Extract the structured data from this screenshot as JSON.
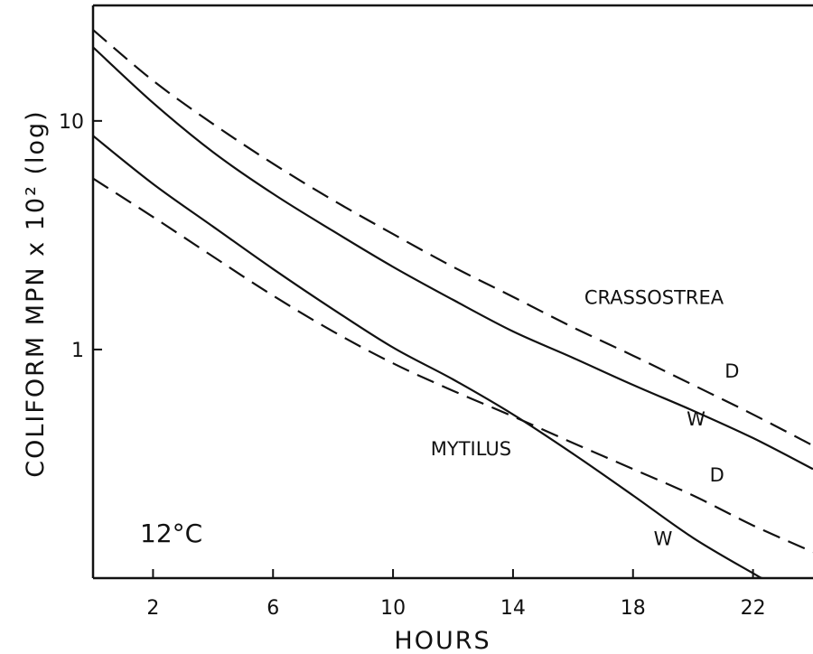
{
  "chart_data": {
    "type": "line",
    "xlabel": "HOURS",
    "ylabel": "COLIFORM MPN x 10² (log)",
    "y_scale": "log",
    "xlim": [
      0,
      24
    ],
    "ylim": [
      0.1,
      32
    ],
    "x_ticks": [
      2,
      6,
      10,
      14,
      18,
      22
    ],
    "x_tick_labels": [
      "2",
      "6",
      "10",
      "14",
      "18",
      "22"
    ],
    "y_ticks": [
      1,
      10
    ],
    "y_tick_labels": [
      "1",
      "10"
    ],
    "grid": false,
    "series": [
      {
        "name": "CRASSOSTREA D",
        "group": "CRASSOSTREA",
        "label": "D",
        "dash": "dashed",
        "color": "#111111",
        "x": [
          0,
          2,
          4,
          6,
          8,
          10,
          12,
          14,
          16,
          18,
          20,
          22,
          24
        ],
        "y": [
          25,
          15,
          9.7,
          6.5,
          4.5,
          3.2,
          2.3,
          1.7,
          1.25,
          0.94,
          0.7,
          0.52,
          0.38
        ]
      },
      {
        "name": "CRASSOSTREA W",
        "group": "CRASSOSTREA",
        "label": "W",
        "dash": "solid",
        "color": "#111111",
        "x": [
          0,
          2,
          4,
          6,
          8,
          10,
          12,
          14,
          16,
          18,
          20,
          22,
          24
        ],
        "y": [
          21,
          12,
          7.3,
          4.8,
          3.3,
          2.3,
          1.65,
          1.2,
          0.92,
          0.7,
          0.54,
          0.41,
          0.3
        ]
      },
      {
        "name": "MYTILUS D",
        "group": "MYTILUS",
        "label": "D",
        "dash": "dashed",
        "color": "#111111",
        "x": [
          0,
          2,
          4,
          6,
          8,
          10,
          12,
          14,
          16,
          18,
          20,
          22,
          24
        ],
        "y": [
          5.6,
          3.8,
          2.55,
          1.72,
          1.2,
          0.87,
          0.66,
          0.51,
          0.39,
          0.3,
          0.23,
          0.17,
          0.13
        ]
      },
      {
        "name": "MYTILUS W",
        "group": "MYTILUS",
        "label": "W",
        "dash": "solid",
        "color": "#111111",
        "x": [
          0,
          2,
          4,
          6,
          8,
          10,
          12,
          14,
          16,
          18,
          20,
          22,
          22.3
        ],
        "y": [
          8.6,
          5.3,
          3.45,
          2.25,
          1.5,
          1.02,
          0.74,
          0.52,
          0.35,
          0.23,
          0.15,
          0.105,
          0.1
        ]
      }
    ],
    "annotations": [
      {
        "text": "CRASSOSTREA",
        "x": 18.7,
        "y": 1.7
      },
      {
        "text": "D",
        "x": 21.3,
        "y": 0.81
      },
      {
        "text": "W",
        "x": 20.1,
        "y": 0.5
      },
      {
        "text": "MYTILUS",
        "x": 12.6,
        "y": 0.37
      },
      {
        "text": "D",
        "x": 20.8,
        "y": 0.285
      },
      {
        "text": "W",
        "x": 19.0,
        "y": 0.15
      }
    ],
    "condition_label": "12°C"
  }
}
